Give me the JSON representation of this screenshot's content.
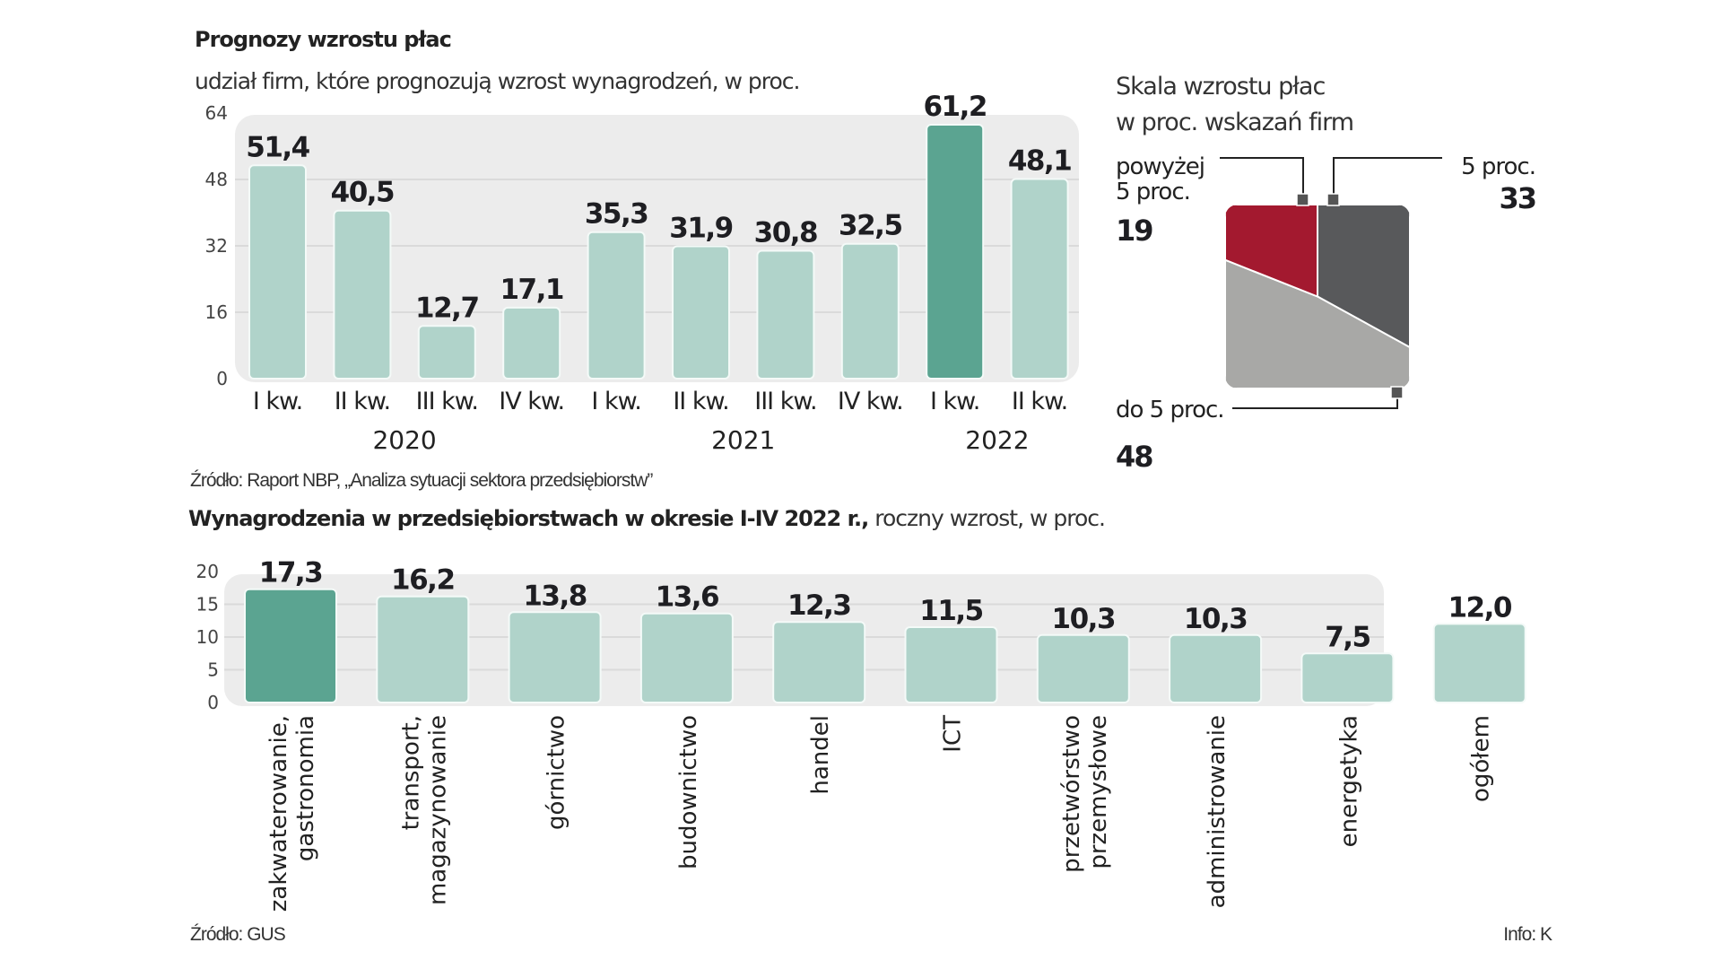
{
  "chart_data": [
    {
      "type": "bar",
      "title": "Prognozy wzrostu płac",
      "subtitle": "udział firm, które prognozują wzrost wynagrodzeń, w proc.",
      "xlabel": "",
      "ylabel": "",
      "ylim": [
        0,
        64
      ],
      "yticks": [
        "0",
        "16",
        "32",
        "48",
        "64"
      ],
      "grid": true,
      "categories": [
        "I kw.",
        "II kw.",
        "III kw.",
        "IV kw.",
        "I kw.",
        "II kw.",
        "III kw.",
        "IV kw.",
        "I kw.",
        "II kw."
      ],
      "groups": [
        {
          "label": "2020",
          "span": [
            0,
            3
          ]
        },
        {
          "label": "2021",
          "span": [
            4,
            7
          ]
        },
        {
          "label": "2022",
          "span": [
            8,
            9
          ]
        }
      ],
      "values": [
        51.4,
        40.5,
        12.7,
        17.1,
        35.3,
        31.9,
        30.8,
        32.5,
        61.2,
        48.1
      ],
      "value_labels": [
        "51,4",
        "40,5",
        "12,7",
        "17,1",
        "35,3",
        "31,9",
        "30,8",
        "32,5",
        "61,2",
        "48,1"
      ],
      "highlight_index": 8,
      "source": "Źródło: Raport NBP, „Analiza sytuacji sektora przedsiębiorstw”"
    },
    {
      "type": "pie",
      "title": "Skala wzrostu płac",
      "subtitle": "w proc. wskazań  firm",
      "slices": [
        {
          "label_lines": [
            "powyżej",
            "5 proc."
          ],
          "value": 19,
          "value_label": "19",
          "color": "#a3192f"
        },
        {
          "label_lines": [
            "5 proc."
          ],
          "value": 33,
          "value_label": "33",
          "color": "#58595b"
        },
        {
          "label_lines": [
            "do 5 proc."
          ],
          "value": 48,
          "value_label": "48",
          "color": "#a8a8a6"
        }
      ]
    },
    {
      "type": "bar",
      "title_bold": "Wynagrodzenia w przedsiębiorstwach  w okresie I-IV 2022 r.,",
      "title_light": " roczny wzrost, w proc.",
      "xlabel": "",
      "ylabel": "",
      "ylim": [
        0,
        20
      ],
      "yticks": [
        "0",
        "5",
        "10",
        "15",
        "20"
      ],
      "grid": true,
      "categories": [
        [
          "zakwaterowanie,",
          "gastronomia"
        ],
        [
          "transport,",
          "magazynowanie"
        ],
        [
          "górnictwo"
        ],
        [
          "budownictwo"
        ],
        [
          "handel"
        ],
        [
          "ICT"
        ],
        [
          "przetwórstwo",
          "przemysłowe"
        ],
        [
          "administrowanie"
        ],
        [
          "energetyka"
        ],
        [
          "ogółem"
        ]
      ],
      "values": [
        17.3,
        16.2,
        13.8,
        13.6,
        12.3,
        11.5,
        10.3,
        10.3,
        7.5,
        12.0
      ],
      "value_labels": [
        "17,3",
        "16,2",
        "13,8",
        "13,6",
        "12,3",
        "11,5",
        "10,3",
        "10,3",
        "7,5",
        "12,0"
      ],
      "highlight_index": 0,
      "source": "Źródło: GUS"
    }
  ],
  "colors": {
    "bar": "#b0d3ca",
    "bar_highlight": "#5ba491",
    "plot_bg": "#ececec",
    "gridline": "#dadada"
  },
  "footer": {
    "credit": "Info: K"
  }
}
